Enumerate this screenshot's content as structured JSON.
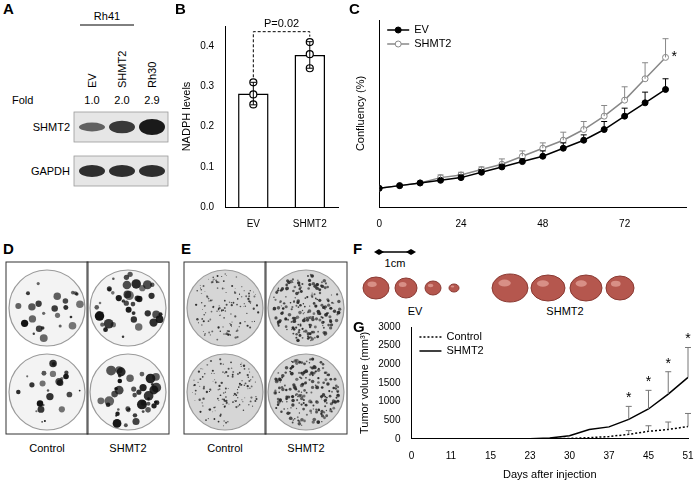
{
  "figure": {
    "panel_labels": [
      "A",
      "B",
      "C",
      "D",
      "E",
      "F",
      "G"
    ]
  },
  "blot": {
    "group_label": "Rh41",
    "lanes": [
      "EV",
      "SHMT2",
      "Rh30"
    ],
    "fold_label": "Fold",
    "fold": [
      "1.0",
      "2.0",
      "2.9"
    ],
    "rows": [
      "SHMT2",
      "GAPDH"
    ]
  },
  "chart_data": [
    {
      "type": "bar",
      "categories": [
        "EV",
        "SHMT2"
      ],
      "values": [
        0.282,
        0.378
      ],
      "errors": [
        0.028,
        0.033
      ],
      "points": [
        [
          0.31,
          0.28,
          0.255
        ],
        [
          0.41,
          0.38,
          0.345
        ]
      ],
      "color": "#ffffff",
      "ylabel": "NADPH levels",
      "ylim": [
        0,
        0.45
      ],
      "yticks": [
        {
          "value": 0,
          "label": "0.0"
        },
        0.1,
        0.2,
        0.3,
        0.4
      ],
      "annotations": [
        {
          "text": "P=0.02"
        }
      ],
      "grid": false
    },
    {
      "type": "line",
      "x": [
        0,
        6,
        12,
        18,
        24,
        30,
        36,
        42,
        48,
        54,
        60,
        66,
        72,
        78,
        84
      ],
      "series": [
        {
          "name": "EV",
          "color": "#000000",
          "marker": "circle",
          "values": [
            7,
            8,
            9,
            10,
            11,
            13,
            15,
            17,
            19,
            22,
            25,
            29,
            34,
            39,
            44
          ],
          "errors": [
            0,
            0,
            0,
            0,
            1,
            1,
            1,
            1,
            2,
            2,
            2,
            3,
            3,
            4,
            4
          ]
        },
        {
          "name": "SHMT2",
          "color": "#888888",
          "marker": "circle_open",
          "values": [
            7,
            8,
            9,
            11,
            12,
            14,
            16,
            19,
            22,
            25,
            29,
            34,
            40,
            48,
            56
          ],
          "errors": [
            0,
            0,
            0,
            1,
            1,
            1,
            2,
            2,
            2,
            3,
            3,
            4,
            5,
            6,
            7
          ]
        }
      ],
      "ylabel": "Confluency (%)",
      "xlim": [
        0,
        90
      ],
      "xticks": [
        0,
        24,
        48,
        72
      ],
      "ylim": [
        0,
        70
      ],
      "tick_labels": "x",
      "legend": "upper left",
      "grid": false,
      "annotations": [
        {
          "text": "*",
          "x": 84
        }
      ]
    },
    {
      "type": "line",
      "categories": [
        "0",
        null,
        "11",
        null,
        "15",
        null,
        "23",
        null,
        "30",
        null,
        "37",
        null,
        "45",
        null,
        "51"
      ],
      "series": [
        {
          "name": "Control",
          "color": "#000000",
          "line_style": "dotted",
          "values": [
            0,
            0,
            0,
            0,
            0,
            0,
            0,
            0,
            10,
            30,
            60,
            120,
            200,
            250,
            330
          ],
          "errors": [
            0,
            0,
            0,
            0,
            0,
            0,
            0,
            0,
            0,
            0,
            0,
            100,
            150,
            200,
            350
          ]
        },
        {
          "name": "SHMT2",
          "color": "#000000",
          "line_style": "solid",
          "values": [
            0,
            0,
            0,
            0,
            0,
            0,
            0,
            20,
            80,
            250,
            320,
            520,
            800,
            1200,
            1650
          ],
          "errors": [
            0,
            0,
            0,
            0,
            0,
            0,
            0,
            0,
            0,
            0,
            0,
            350,
            500,
            600,
            800
          ]
        }
      ],
      "xlabel": "Days after injection",
      "ylabel": "Tumor volume (mm³)",
      "ylim": [
        0,
        3000
      ],
      "yticks": [
        0,
        500,
        1000,
        1500,
        2000,
        2500,
        3000
      ],
      "legend": "upper left",
      "grid": false,
      "annotations": [
        {
          "text": "*",
          "index": 11
        },
        {
          "text": "*",
          "index": 12
        },
        {
          "text": "*",
          "index": 13
        },
        {
          "text": "*",
          "index": 14
        }
      ]
    }
  ],
  "colony_assay": {
    "labels": [
      "Control",
      "SHMT2"
    ]
  },
  "soft_agar": {
    "labels": [
      "Control",
      "SHMT2"
    ]
  },
  "xenograft_photo": {
    "scale_bar": "1cm",
    "labels": [
      "EV",
      "SHMT2"
    ]
  }
}
